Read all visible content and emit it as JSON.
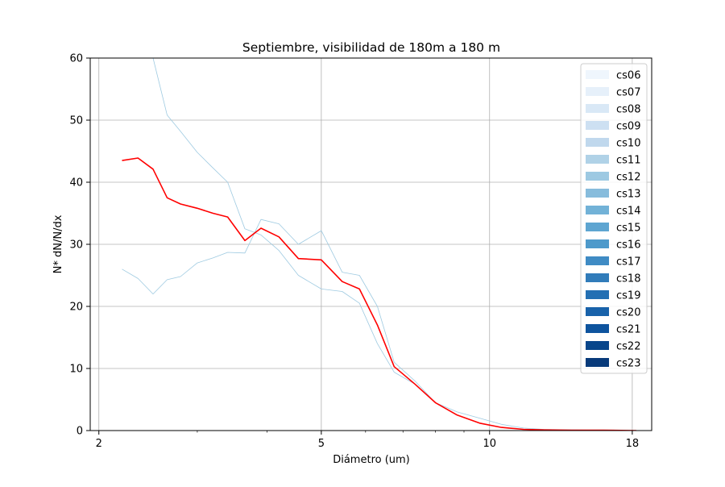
{
  "chart_data": {
    "type": "line",
    "title": "Septiembre, visibilidad de 180m a 180 m",
    "xlabel": "Diámetro (um)",
    "ylabel": "N* dN/N/dx",
    "xscale": "log",
    "xlim": [
      1.93,
      19.5
    ],
    "ylim": [
      0,
      60
    ],
    "xticks": [
      2,
      5,
      10,
      18
    ],
    "xtick_labels": [
      "2",
      "5",
      "10",
      "18"
    ],
    "yticks": [
      0,
      10,
      20,
      30,
      40,
      50,
      60
    ],
    "ytick_labels": [
      "0",
      "10",
      "20",
      "30",
      "40",
      "50",
      "60"
    ],
    "grid": true,
    "legend_position": "top-right",
    "legend": [
      {
        "label": "cs06",
        "color": "#eff6fd"
      },
      {
        "label": "cs07",
        "color": "#e6f0fa"
      },
      {
        "label": "cs08",
        "color": "#d9e8f6"
      },
      {
        "label": "cs09",
        "color": "#cde0f2"
      },
      {
        "label": "cs10",
        "color": "#c0d8ed"
      },
      {
        "label": "cs11",
        "color": "#b0d2e7"
      },
      {
        "label": "cs12",
        "color": "#9dc9e2"
      },
      {
        "label": "cs13",
        "color": "#87bcdc"
      },
      {
        "label": "cs14",
        "color": "#72b2d7"
      },
      {
        "label": "cs15",
        "color": "#5ea5d1"
      },
      {
        "label": "cs16",
        "color": "#4e9acb"
      },
      {
        "label": "cs17",
        "color": "#3f8bc4"
      },
      {
        "label": "cs18",
        "color": "#317cba"
      },
      {
        "label": "cs19",
        "color": "#236fb3"
      },
      {
        "label": "cs20",
        "color": "#1862aa"
      },
      {
        "label": "cs21",
        "color": "#0e549e"
      },
      {
        "label": "cs22",
        "color": "#08468b"
      },
      {
        "label": "cs23",
        "color": "#083a7a"
      }
    ],
    "series": [
      {
        "color": "#9ecae1",
        "x": [
          2.2,
          2.35,
          2.5,
          2.65,
          2.8,
          3.0,
          3.2,
          3.4,
          3.65,
          3.9,
          4.2,
          4.55,
          5.0,
          5.45,
          5.85,
          6.3,
          6.75,
          7.35,
          8.0,
          8.75,
          9.6,
          10.5,
          11.5,
          12.5,
          14.0,
          16.0,
          18.3
        ],
        "y": [
          26,
          24.5,
          22,
          24.3,
          24.8,
          27,
          27.8,
          28.7,
          28.6,
          34,
          33.3,
          30,
          32.2,
          25.5,
          25,
          20,
          11,
          8,
          4.5,
          3,
          2,
          1,
          0.4,
          0.2,
          0.1,
          0.05,
          0
        ]
      },
      {
        "color": "#9ecae1",
        "x": [
          2.5,
          2.65,
          2.8,
          3.0,
          3.2,
          3.4,
          3.65,
          3.9,
          4.2,
          4.55,
          5.0,
          5.45,
          5.85,
          6.3,
          6.75,
          7.35,
          8.0,
          8.75,
          9.6,
          10.5,
          11.5,
          12.5,
          14.0,
          16.0,
          18.3
        ],
        "y": [
          60,
          50.8,
          48.2,
          44.8,
          42.3,
          40,
          32.5,
          31.5,
          29,
          25,
          22.8,
          22.4,
          20.5,
          14,
          9.4,
          7.5,
          4.5,
          2.5,
          1.2,
          0.5,
          0.2,
          0.1,
          0.05,
          0,
          0
        ]
      },
      {
        "color": "#ff0000",
        "width": 1.6,
        "x": [
          2.2,
          2.35,
          2.5,
          2.65,
          2.8,
          3.0,
          3.2,
          3.4,
          3.65,
          3.9,
          4.2,
          4.55,
          5.0,
          5.45,
          5.85,
          6.3,
          6.75,
          7.35,
          8.0,
          8.75,
          9.6,
          10.5,
          11.5,
          12.5,
          14.0,
          16.0,
          18.3
        ],
        "y": [
          43.5,
          43.9,
          42.1,
          37.5,
          36.5,
          35.8,
          35,
          34.4,
          30.6,
          32.6,
          31.2,
          27.7,
          27.5,
          24,
          22.8,
          17,
          10.3,
          7.5,
          4.5,
          2.5,
          1.2,
          0.5,
          0.2,
          0.1,
          0.05,
          0.05,
          0
        ]
      }
    ]
  }
}
